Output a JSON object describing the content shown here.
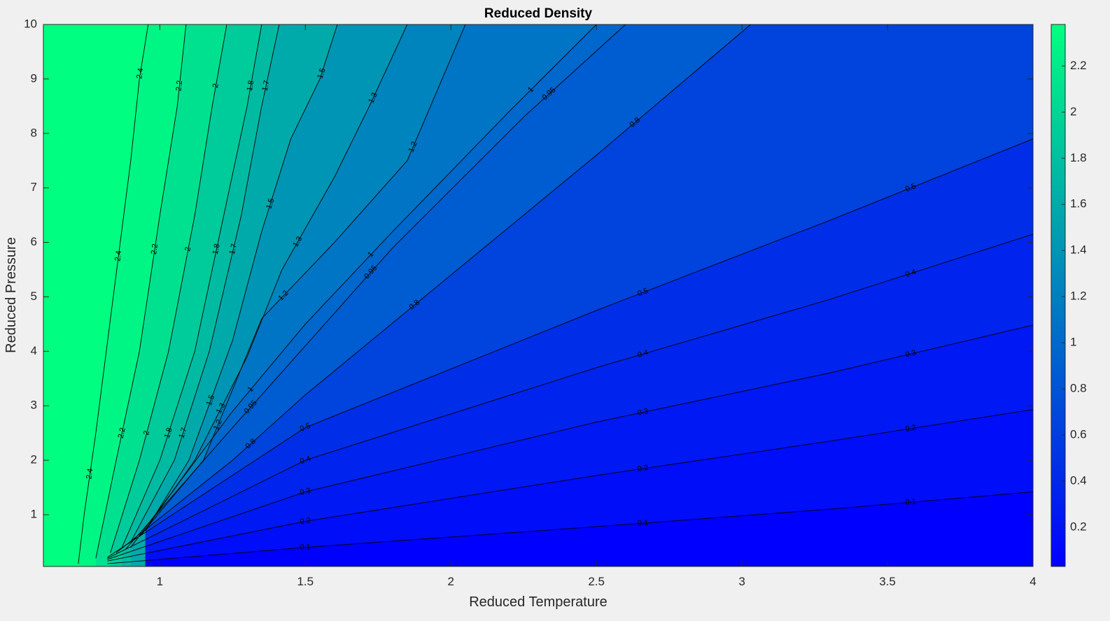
{
  "window": {
    "background": "#f0f0f0"
  },
  "chart_data": {
    "type": "contour",
    "title": "Reduced Density",
    "xlabel": "Reduced Temperature",
    "ylabel": "Reduced Pressure",
    "xlim": [
      0.6,
      4.0
    ],
    "ylim": [
      0.05,
      10.0
    ],
    "xticks": [
      1,
      1.5,
      2,
      2.5,
      3,
      3.5,
      4
    ],
    "xtick_labels": [
      "1",
      "1.5",
      "2",
      "2.5",
      "3",
      "3.5",
      "4"
    ],
    "yticks": [
      1,
      2,
      3,
      4,
      5,
      6,
      7,
      8,
      9,
      10
    ],
    "ytick_labels": [
      "1",
      "2",
      "3",
      "4",
      "5",
      "6",
      "7",
      "8",
      "9",
      "10"
    ],
    "grid": false,
    "colormap": {
      "name": "winter",
      "low": "#0000ff",
      "high": "#00ff80"
    },
    "colorbar": {
      "location": "right",
      "clim": [
        0.03,
        2.38
      ],
      "ticks": [
        0.2,
        0.4,
        0.6,
        0.8,
        1,
        1.2,
        1.4,
        1.6,
        1.8,
        2,
        2.2
      ],
      "tick_labels": [
        "0.2",
        "0.4",
        "0.6",
        "0.8",
        "1",
        "1.2",
        "1.4",
        "1.6",
        "1.8",
        "2",
        "2.2"
      ]
    },
    "contour_levels": [
      {
        "level": 0.1,
        "label": "0.1",
        "points": [
          [
            0.82,
            0.1
          ],
          [
            1.5,
            0.4
          ],
          [
            2.5,
            0.78
          ],
          [
            3.3,
            1.1
          ],
          [
            4.0,
            1.42
          ]
        ]
      },
      {
        "level": 0.2,
        "label": "0.2",
        "points": [
          [
            0.82,
            0.15
          ],
          [
            1.5,
            0.88
          ],
          [
            2.5,
            1.72
          ],
          [
            3.3,
            2.35
          ],
          [
            4.0,
            2.93
          ]
        ]
      },
      {
        "level": 0.3,
        "label": "0.3",
        "points": [
          [
            0.82,
            0.18
          ],
          [
            1.5,
            1.42
          ],
          [
            2.5,
            2.7
          ],
          [
            3.3,
            3.6
          ],
          [
            4.0,
            4.48
          ]
        ]
      },
      {
        "level": 0.4,
        "label": "0.4",
        "points": [
          [
            0.82,
            0.2
          ],
          [
            1.5,
            2.0
          ],
          [
            2.5,
            3.7
          ],
          [
            3.3,
            4.95
          ],
          [
            4.0,
            6.15
          ]
        ]
      },
      {
        "level": 0.5,
        "label": "0.5",
        "points": [
          [
            0.82,
            0.22
          ],
          [
            1.5,
            2.6
          ],
          [
            2.5,
            4.75
          ],
          [
            3.3,
            6.4
          ],
          [
            4.0,
            7.9
          ]
        ]
      },
      {
        "level": 0.8,
        "label": "0.8",
        "points": [
          [
            0.85,
            0.3
          ],
          [
            1.25,
            2.0
          ],
          [
            1.5,
            3.2
          ],
          [
            2.0,
            5.4
          ],
          [
            2.5,
            7.6
          ],
          [
            3.03,
            10.0
          ]
        ]
      },
      {
        "level": 0.95,
        "label": "0.95",
        "points": [
          [
            0.88,
            0.35
          ],
          [
            1.25,
            2.6
          ],
          [
            1.5,
            4.1
          ],
          [
            1.8,
            5.9
          ],
          [
            2.25,
            8.3
          ],
          [
            2.6,
            10.0
          ]
        ]
      },
      {
        "level": 1.0,
        "label": "1",
        "points": [
          [
            0.9,
            0.4
          ],
          [
            1.25,
            2.9
          ],
          [
            1.5,
            4.5
          ],
          [
            1.8,
            6.2
          ],
          [
            2.2,
            8.4
          ],
          [
            2.5,
            10.0
          ]
        ]
      },
      {
        "level": 1.2,
        "label": "1.2",
        "points": [
          [
            0.93,
            0.6
          ],
          [
            1.15,
            2.0
          ],
          [
            1.25,
            3.3
          ],
          [
            1.35,
            4.6
          ],
          [
            1.6,
            6.0
          ],
          [
            1.85,
            7.5
          ],
          [
            2.05,
            10.0
          ]
        ]
      },
      {
        "level": 1.3,
        "label": "1.3",
        "points": [
          [
            0.94,
            0.65
          ],
          [
            1.12,
            2.0
          ],
          [
            1.3,
            3.9
          ],
          [
            1.42,
            5.5
          ],
          [
            1.6,
            7.2
          ],
          [
            1.72,
            8.5
          ],
          [
            1.85,
            10.0
          ]
        ]
      },
      {
        "level": 1.5,
        "label": "1.5",
        "points": [
          [
            0.95,
            0.7
          ],
          [
            1.1,
            2.0
          ],
          [
            1.25,
            4.2
          ],
          [
            1.35,
            6.2
          ],
          [
            1.45,
            7.9
          ],
          [
            1.55,
            9.0
          ],
          [
            1.61,
            10.0
          ]
        ]
      },
      {
        "level": 1.7,
        "label": "1.7",
        "points": [
          [
            0.9,
            0.5
          ],
          [
            1.05,
            2.0
          ],
          [
            1.17,
            4.0
          ],
          [
            1.28,
            6.5
          ],
          [
            1.35,
            8.5
          ],
          [
            1.41,
            10.0
          ]
        ]
      },
      {
        "level": 1.8,
        "label": "1.8",
        "points": [
          [
            0.87,
            0.4
          ],
          [
            1.0,
            2.0
          ],
          [
            1.12,
            4.0
          ],
          [
            1.22,
            6.5
          ],
          [
            1.3,
            8.5
          ],
          [
            1.35,
            10.0
          ]
        ]
      },
      {
        "level": 2.0,
        "label": "2",
        "points": [
          [
            0.83,
            0.3
          ],
          [
            0.93,
            2.0
          ],
          [
            1.03,
            4.0
          ],
          [
            1.12,
            6.5
          ],
          [
            1.18,
            8.5
          ],
          [
            1.23,
            10.0
          ]
        ]
      },
      {
        "level": 2.2,
        "label": "2.2",
        "points": [
          [
            0.78,
            0.2
          ],
          [
            0.85,
            2.0
          ],
          [
            0.93,
            4.0
          ],
          [
            1.0,
            6.5
          ],
          [
            1.06,
            8.5
          ],
          [
            1.09,
            10.0
          ]
        ]
      },
      {
        "level": 2.4,
        "label": "2.4",
        "points": [
          [
            0.72,
            0.1
          ],
          [
            0.74,
            1.0
          ],
          [
            0.78,
            2.5
          ],
          [
            0.84,
            5.0
          ],
          [
            0.9,
            7.5
          ],
          [
            0.93,
            9.0
          ],
          [
            0.96,
            10.0
          ]
        ]
      }
    ]
  }
}
